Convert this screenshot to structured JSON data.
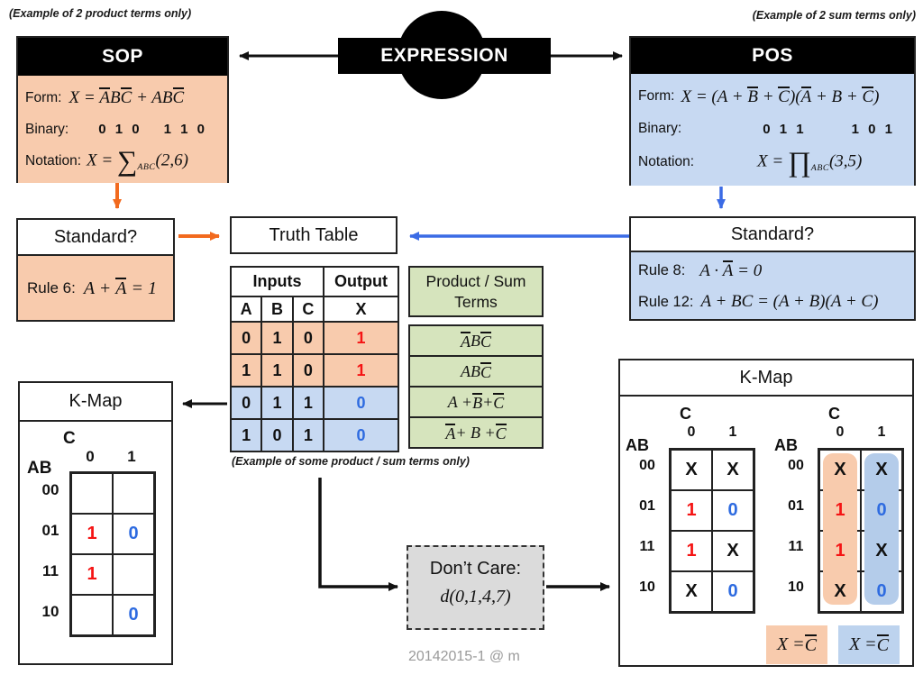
{
  "colors": {
    "peach_fill": "#F8CBAD",
    "blue_fill": "#C7D9F2",
    "green_fill": "#D6E4BD",
    "gray_fill": "#DBDBDB",
    "orange_arrow": "#F26A1E",
    "blue_arrow": "#3B6BE5",
    "red_value": "#F51414",
    "blue_value": "#2E6BE0",
    "gray_text": "#9A9A9A"
  },
  "captions": {
    "top_left": "(Example of 2 product terms only)",
    "top_right": "(Example of 2 sum terms only)",
    "table_note": "(Example of some product / sum terms only)",
    "footer": "20142015-1 @ m"
  },
  "expression": {
    "label": "EXPRESSION"
  },
  "sop": {
    "title": "SOP",
    "form_label": "Form:",
    "binary_label": "Binary:",
    "notation_label": "Notation:",
    "binary_values": [
      "0 1 0",
      "1 1 0"
    ],
    "form": [
      {
        "t": "X = "
      },
      {
        "t": "A",
        "o": 1
      },
      {
        "t": "B"
      },
      {
        "t": "C",
        "o": 1
      },
      {
        "t": " + AB"
      },
      {
        "t": "C",
        "o": 1
      }
    ],
    "notation": [
      {
        "t": "X = "
      },
      {
        "t": "∑",
        "big": 1
      },
      {
        "t": "ABC",
        "sub": 1
      },
      {
        "t": "(2,6)"
      }
    ]
  },
  "pos": {
    "title": "POS",
    "form_label": "Form:",
    "binary_label": "Binary:",
    "notation_label": "Notation:",
    "binary_values": [
      "0 1 1",
      "1 0 1"
    ],
    "form": [
      {
        "t": "X = ("
      },
      {
        "t": "A + "
      },
      {
        "t": "B",
        "o": 1
      },
      {
        "t": " + "
      },
      {
        "t": "C",
        "o": 1
      },
      {
        "t": ")("
      },
      {
        "t": "A",
        "o": 1
      },
      {
        "t": " + B + "
      },
      {
        "t": "C",
        "o": 1
      },
      {
        "t": ")"
      }
    ],
    "notation": [
      {
        "t": "X = "
      },
      {
        "t": "∏",
        "big": 1
      },
      {
        "t": "ABC",
        "sub": 1
      },
      {
        "t": "(3,5)"
      }
    ]
  },
  "standard_sop": {
    "title": "Standard?",
    "rule_label": "Rule 6:",
    "rule": [
      {
        "t": "A + "
      },
      {
        "t": "A",
        "o": 1
      },
      {
        "t": " = 1"
      }
    ]
  },
  "standard_pos": {
    "title": "Standard?",
    "rule1_label": "Rule 8:",
    "rule1": [
      {
        "t": "A · "
      },
      {
        "t": "A",
        "o": 1
      },
      {
        "t": " = 0"
      }
    ],
    "rule2_label": "Rule 12:",
    "rule2": [
      {
        "t": "A + BC = (A + B)(A + C)"
      }
    ]
  },
  "truth_table": {
    "title": "Truth Table",
    "inputs_header": "Inputs",
    "output_header": "Output",
    "columns": [
      "A",
      "B",
      "C"
    ],
    "output_column": "X",
    "rows": [
      {
        "a": "0",
        "b": "1",
        "c": "0",
        "x": "1"
      },
      {
        "a": "1",
        "b": "1",
        "c": "0",
        "x": "1"
      },
      {
        "a": "0",
        "b": "1",
        "c": "1",
        "x": "0"
      },
      {
        "a": "1",
        "b": "0",
        "c": "1",
        "x": "0"
      }
    ]
  },
  "terms_panel": {
    "header": "Product / Sum Terms",
    "terms": [
      [
        {
          "t": "A",
          "o": 1
        },
        {
          "t": "B"
        },
        {
          "t": "C",
          "o": 1
        }
      ],
      [
        {
          "t": "AB"
        },
        {
          "t": "C",
          "o": 1
        }
      ],
      [
        {
          "t": "A + "
        },
        {
          "t": "B",
          "o": 1
        },
        {
          "t": " + "
        },
        {
          "t": "C",
          "o": 1
        }
      ],
      [
        {
          "t": "A",
          "o": 1
        },
        {
          "t": " + B + "
        },
        {
          "t": "C",
          "o": 1
        }
      ]
    ]
  },
  "kmap_left": {
    "title": "K-Map",
    "col_var": "C",
    "row_var": "AB",
    "col_labels": [
      "0",
      "1"
    ],
    "row_labels": [
      "00",
      "01",
      "11",
      "10"
    ],
    "cells": [
      [
        "",
        ""
      ],
      [
        "1",
        "0"
      ],
      [
        "1",
        ""
      ],
      [
        "",
        "0"
      ]
    ]
  },
  "dont_care": {
    "label": "Don’t Care:",
    "formula": [
      {
        "t": "d"
      },
      {
        "t": "(0,1,4,7)"
      }
    ]
  },
  "kmap_right": {
    "title": "K-Map",
    "col_var": "C",
    "row_var": "AB",
    "col_labels": [
      "0",
      "1"
    ],
    "row_labels": [
      "00",
      "01",
      "11",
      "10"
    ],
    "cells": [
      [
        "X",
        "X"
      ],
      [
        "1",
        "0"
      ],
      [
        "1",
        "X"
      ],
      [
        "X",
        "0"
      ]
    ],
    "legend_sop": [
      {
        "t": "X = "
      },
      {
        "t": "C",
        "o": 1
      }
    ],
    "legend_pos": [
      {
        "t": "X = "
      },
      {
        "t": "C",
        "o": 1
      }
    ]
  }
}
